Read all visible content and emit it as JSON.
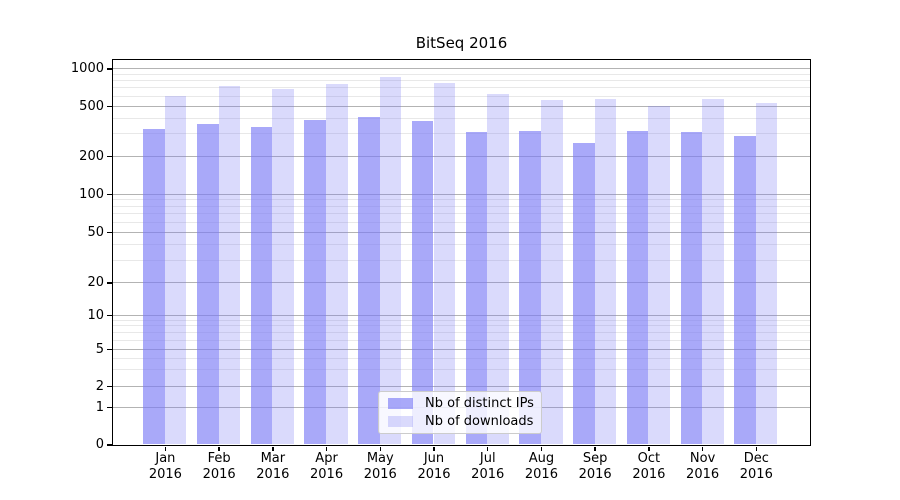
{
  "chart_data": {
    "type": "bar",
    "title": "BitSeq 2016",
    "categories": [
      "Jan 2016",
      "Feb 2016",
      "Mar 2016",
      "Apr 2016",
      "May 2016",
      "Jun 2016",
      "Jul 2016",
      "Aug 2016",
      "Sep 2016",
      "Oct 2016",
      "Nov 2016",
      "Dec 2016"
    ],
    "series": [
      {
        "name": "Nb of distinct IPs",
        "color": "rgba(120,120,245,0.64)",
        "values": [
          331,
          360,
          343,
          390,
          405,
          378,
          312,
          317,
          256,
          317,
          312,
          286
        ]
      },
      {
        "name": "Nb of downloads",
        "color": "rgba(120,120,245,0.27)",
        "values": [
          600,
          725,
          680,
          755,
          860,
          762,
          620,
          557,
          570,
          502,
          564,
          530
        ]
      }
    ],
    "xlabel": "",
    "ylabel": "",
    "yscale": "symlog",
    "ylim": [
      0,
      1100
    ],
    "y_ticks": [
      0,
      1,
      2,
      5,
      10,
      20,
      50,
      100,
      200,
      500,
      1000
    ],
    "y_minor_ticks": [
      3,
      4,
      6,
      7,
      8,
      9,
      30,
      40,
      60,
      70,
      80,
      90,
      300,
      400,
      600,
      700,
      800,
      900
    ],
    "grid": "both",
    "legend_position": "lower center"
  },
  "colors": {
    "background": "#ffffff",
    "axis": "#000000",
    "text": "#000000",
    "grid_major": "#b3b3b3",
    "grid_minor": "#e8e8e8",
    "legend_border": "#cccccc",
    "legend_background": "rgba(255,255,255,0.8)"
  }
}
